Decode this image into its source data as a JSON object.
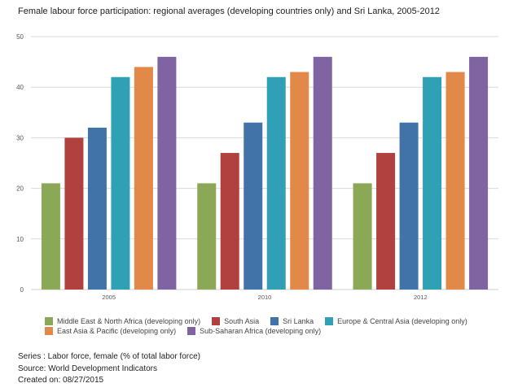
{
  "title": "Female labour force participation: regional averages (developing countries only) and Sri Lanka, 2005-2012",
  "chart_data": {
    "type": "bar",
    "title": "Female labour force participation: regional averages (developing countries only) and Sri Lanka, 2005-2012",
    "xlabel": "",
    "ylabel": "",
    "ylim": [
      0,
      50
    ],
    "yticks": [
      0,
      10,
      20,
      30,
      40,
      50
    ],
    "grid": true,
    "categories": [
      "2005",
      "2010",
      "2012"
    ],
    "series": [
      {
        "name": "Middle East & North Africa (developing only)",
        "color": "#8aa855",
        "values": [
          21,
          21,
          21
        ]
      },
      {
        "name": "South Asia",
        "color": "#b0413e",
        "values": [
          30,
          27,
          27
        ]
      },
      {
        "name": "Sri Lanka",
        "color": "#4273a8",
        "values": [
          32,
          33,
          33
        ]
      },
      {
        "name": "Europe & Central Asia (developing only)",
        "color": "#30a0b5",
        "values": [
          42,
          42,
          42
        ]
      },
      {
        "name": "East Asia & Pacific (developing only)",
        "color": "#e28848",
        "values": [
          44,
          43,
          43
        ]
      },
      {
        "name": "Sub-Saharan Africa (developing only)",
        "color": "#8064a2",
        "values": [
          46,
          46,
          46
        ]
      }
    ],
    "legend_position": "bottom"
  },
  "footer": {
    "series": "Series : Labor force, female (% of total labor force)",
    "source": "Source: World Development Indicators",
    "created": "Created on: 08/27/2015"
  }
}
